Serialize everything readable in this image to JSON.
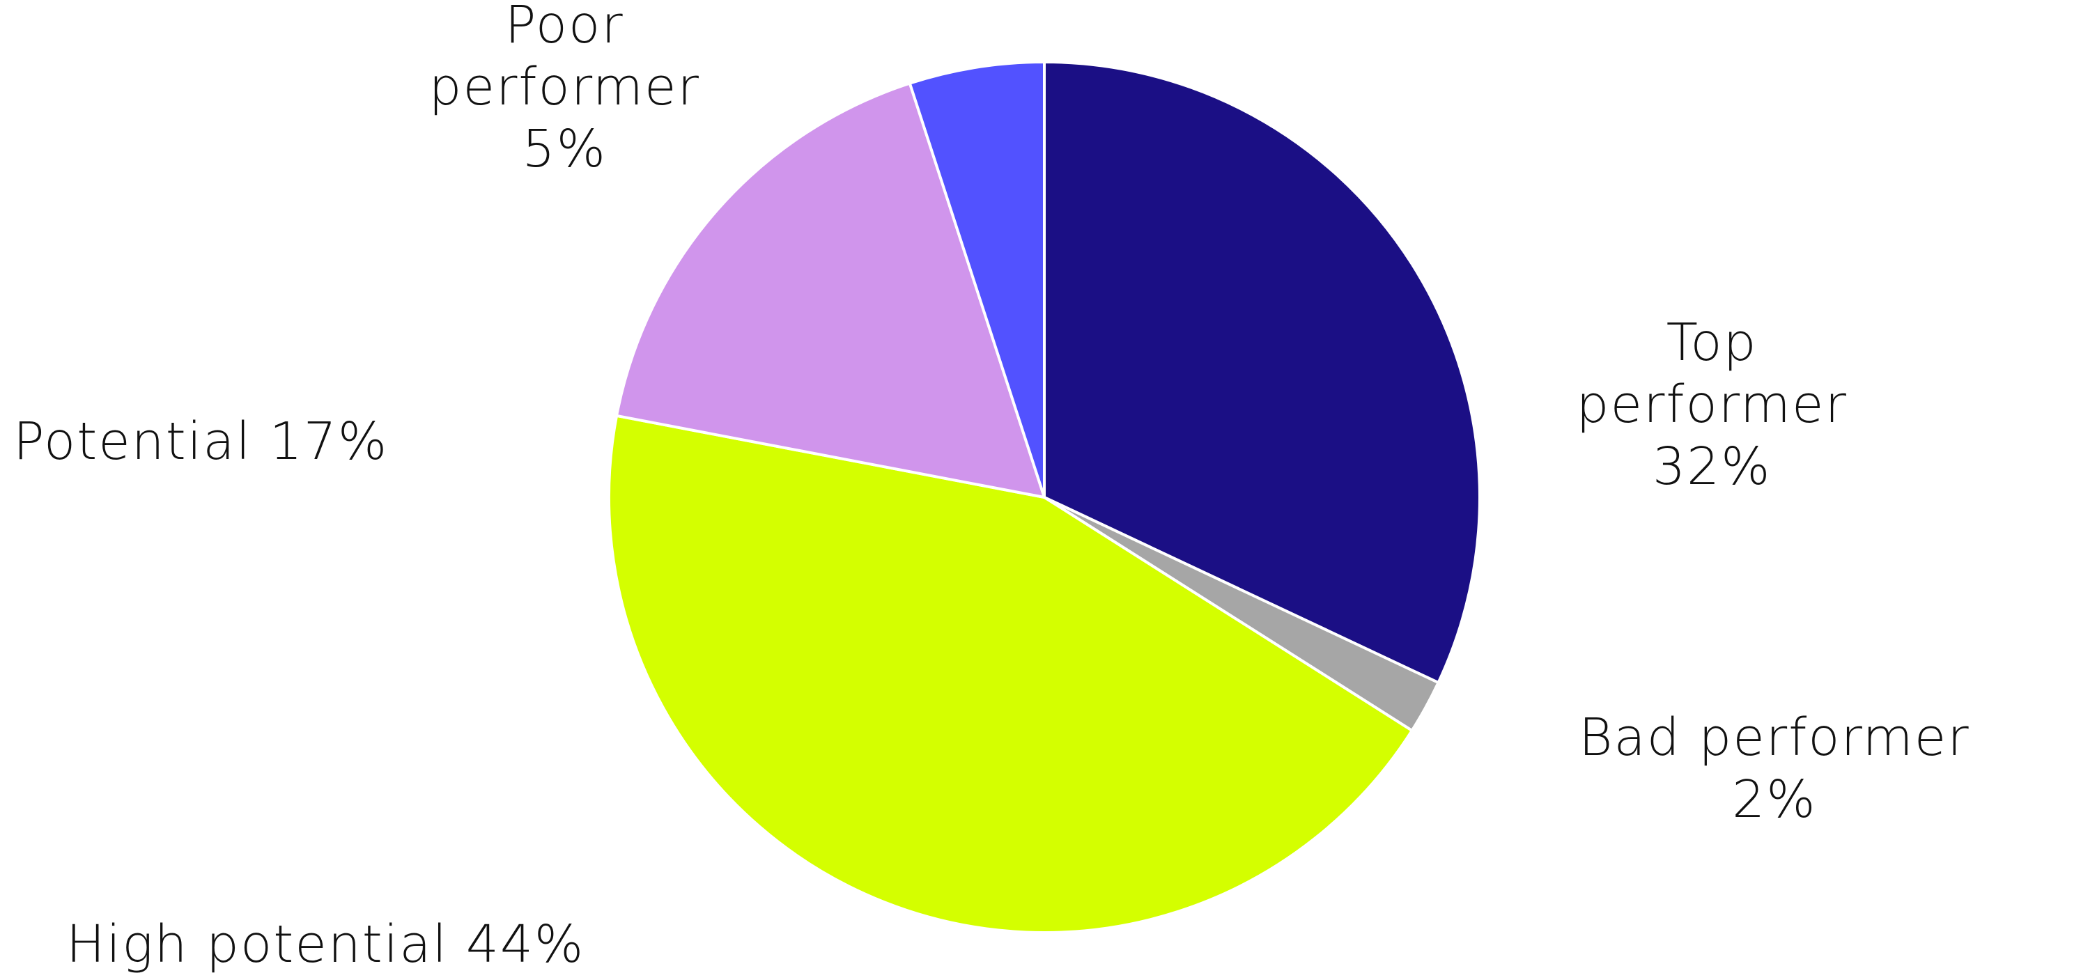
{
  "chart_data": {
    "type": "pie",
    "categories": [
      "Top performer",
      "Bad performer",
      "High potential",
      "Potential",
      "Poor performer"
    ],
    "values": [
      32,
      2,
      44,
      17,
      5
    ],
    "value_labels": [
      "32%",
      "2%",
      "44%",
      "17%",
      "5%"
    ],
    "colors": [
      "#1b0f85",
      "#a6a6a6",
      "#d4ff00",
      "#d095ec",
      "#5252ff"
    ]
  }
}
